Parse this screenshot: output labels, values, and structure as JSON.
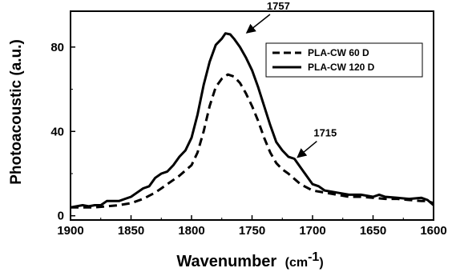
{
  "chart_data": {
    "type": "line",
    "xlabel": "Wavenumber",
    "xlabel_unit": "(cm",
    "xlabel_sup": "-1",
    "xlabel_close": ")",
    "ylabel": "Photoacoustic (a.u.)",
    "xlim": [
      1900,
      1600
    ],
    "ylim": [
      -2,
      97
    ],
    "x_reversed": true,
    "x_ticks": [
      1900,
      1850,
      1800,
      1750,
      1700,
      1650,
      1600
    ],
    "y_ticks": [
      0,
      40,
      80
    ],
    "grid": false,
    "legend_position": "top-right",
    "series": [
      {
        "name": "PLA-CW 60 D",
        "style": "dashed",
        "color": "#000000",
        "x": [
          1900,
          1890,
          1880,
          1870,
          1860,
          1850,
          1840,
          1830,
          1825,
          1820,
          1810,
          1800,
          1795,
          1790,
          1785,
          1780,
          1775,
          1770,
          1765,
          1760,
          1755,
          1750,
          1745,
          1740,
          1735,
          1730,
          1725,
          1720,
          1710,
          1700,
          1690,
          1680,
          1670,
          1660,
          1650,
          1640,
          1630,
          1620,
          1610,
          1605,
          1600
        ],
        "y": [
          4,
          4,
          4,
          4.5,
          5,
          6,
          8,
          11,
          13,
          15,
          19,
          24,
          30,
          40,
          52,
          61,
          65,
          67,
          66,
          63,
          58,
          52,
          45,
          37,
          30,
          25,
          22,
          20,
          15,
          12,
          11,
          10,
          9,
          9,
          8.5,
          8,
          8,
          7.5,
          7,
          7,
          6
        ]
      },
      {
        "name": "PLA-CW 120 D",
        "style": "solid",
        "color": "#000000",
        "x": [
          1900,
          1890,
          1885,
          1880,
          1875,
          1870,
          1865,
          1860,
          1855,
          1850,
          1845,
          1840,
          1835,
          1830,
          1825,
          1820,
          1815,
          1810,
          1805,
          1800,
          1795,
          1790,
          1785,
          1780,
          1775,
          1772,
          1768,
          1765,
          1760,
          1755,
          1750,
          1745,
          1740,
          1735,
          1730,
          1725,
          1720,
          1715,
          1710,
          1705,
          1700,
          1695,
          1690,
          1680,
          1670,
          1660,
          1650,
          1645,
          1640,
          1630,
          1620,
          1610,
          1605,
          1600
        ],
        "y": [
          4,
          5,
          4.5,
          5,
          5,
          7,
          7,
          7,
          8,
          9,
          11,
          13,
          14,
          18,
          20,
          21,
          24,
          28,
          31,
          37,
          48,
          62,
          73,
          81,
          84,
          86.5,
          86,
          84,
          80,
          75,
          69,
          61,
          52,
          43,
          35,
          31,
          28,
          27,
          23,
          19,
          15,
          14,
          12,
          11,
          10,
          10,
          9,
          10,
          9,
          8.5,
          8,
          8.5,
          7.5,
          5
        ]
      }
    ],
    "annotations": [
      {
        "text": "1757",
        "x": 1757,
        "y": 86
      },
      {
        "text": "1715",
        "x": 1715,
        "y": 27
      }
    ]
  }
}
